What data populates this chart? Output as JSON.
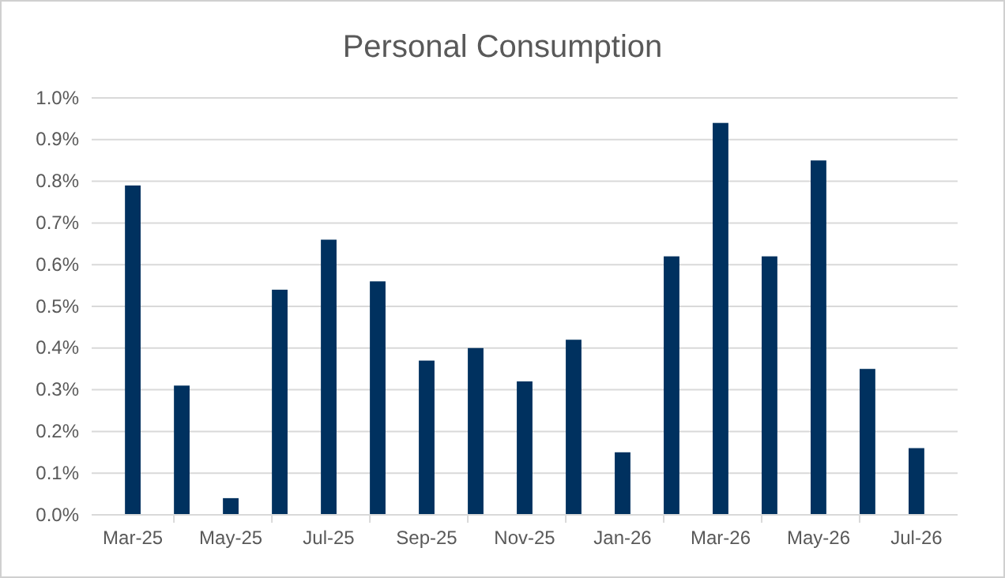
{
  "chart_data": {
    "type": "bar",
    "title": "Personal Consumption",
    "categories": [
      "Mar-25",
      null,
      "May-25",
      null,
      "Jul-25",
      null,
      "Sep-25",
      null,
      "Nov-25",
      null,
      "Jan-26",
      null,
      "Mar-26",
      null,
      "May-26",
      null,
      "Jul-26"
    ],
    "values": [
      0.79,
      0.31,
      0.04,
      0.54,
      0.66,
      0.56,
      0.37,
      0.4,
      0.32,
      0.42,
      0.15,
      0.62,
      0.94,
      0.62,
      0.85,
      0.35,
      0.16
    ],
    "color": "#00315f",
    "ylim": [
      0,
      1.0
    ],
    "yticks": [
      {
        "value": 0,
        "label": "0.0%"
      },
      {
        "value": 0.1,
        "label": "0.1%"
      },
      {
        "value": 0.2,
        "label": "0.2%"
      },
      {
        "value": 0.3,
        "label": "0.3%"
      },
      {
        "value": 0.4,
        "label": "0.4%"
      },
      {
        "value": 0.5,
        "label": "0.5%"
      },
      {
        "value": 0.6,
        "label": "0.6%"
      },
      {
        "value": 0.7,
        "label": "0.7%"
      },
      {
        "value": 0.8,
        "label": "0.8%"
      },
      {
        "value": 0.9,
        "label": "0.9%"
      },
      {
        "value": 1.0,
        "label": "1.0%"
      }
    ],
    "grid": "y"
  }
}
